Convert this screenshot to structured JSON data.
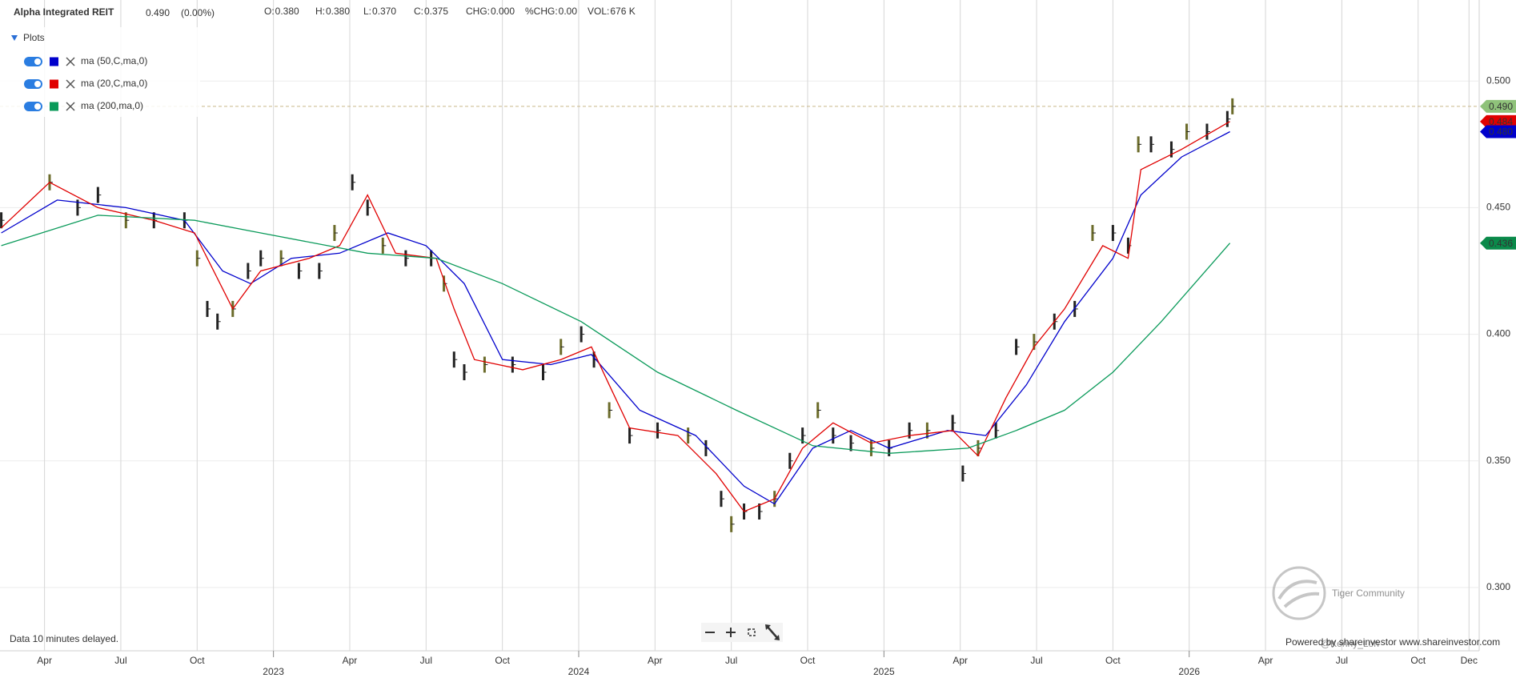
{
  "chart_data": {
    "type": "ohlc-ma",
    "title": "Alpha Integrated REIT",
    "last": "0.490",
    "change": "(0.00%)",
    "quote": [
      {
        "label": "O:",
        "value": "0.380"
      },
      {
        "label": "H:",
        "value": "0.380"
      },
      {
        "label": "L:",
        "value": "0.370"
      },
      {
        "label": "C:",
        "value": "0.375"
      },
      {
        "label": "CHG:",
        "value": "0.000"
      },
      {
        "label": "%CHG:",
        "value": "0.00"
      },
      {
        "label": "VOL:",
        "value": "676 K"
      }
    ],
    "legend_title": "Plots",
    "note": "Data 10 minutes delayed.",
    "credit": "Powered by shareinvestor www.shareinvestor.com",
    "watermark": "Tiger Community",
    "watermark_user": "@Kenny_Loh",
    "xlim": [
      1.25,
      59.4
    ],
    "ylim": [
      0.275,
      0.532
    ],
    "grid": true,
    "yticks": [
      {
        "value": 0.3,
        "label": "0.300"
      },
      {
        "value": 0.35,
        "label": "0.350"
      },
      {
        "value": 0.4,
        "label": "0.400"
      },
      {
        "value": 0.45,
        "label": "0.450"
      },
      {
        "value": 0.5,
        "label": "0.500"
      }
    ],
    "xticks": [
      {
        "value": 3,
        "label": "Apr"
      },
      {
        "value": 6,
        "label": "Jul"
      },
      {
        "value": 9,
        "label": "Oct"
      },
      {
        "value": 15,
        "label": "Apr"
      },
      {
        "value": 18,
        "label": "Jul"
      },
      {
        "value": 21,
        "label": "Oct"
      },
      {
        "value": 27,
        "label": "Apr"
      },
      {
        "value": 30,
        "label": "Jul"
      },
      {
        "value": 33,
        "label": "Oct"
      },
      {
        "value": 39,
        "label": "Apr"
      },
      {
        "value": 42,
        "label": "Jul"
      },
      {
        "value": 45,
        "label": "Oct"
      },
      {
        "value": 51,
        "label": "Apr"
      },
      {
        "value": 54,
        "label": "Jul"
      },
      {
        "value": 57,
        "label": "Oct"
      },
      {
        "value": 59,
        "label": "Dec"
      }
    ],
    "year_ticks": [
      {
        "value": 12,
        "label": "2023"
      },
      {
        "value": 24,
        "label": "2024"
      },
      {
        "value": 36,
        "label": "2025"
      },
      {
        "value": 48,
        "label": "2026"
      }
    ],
    "price": {
      "color": "#222222",
      "x": [
        1.3,
        3.2,
        4.3,
        5.1,
        6.2,
        7.3,
        8.5,
        9.0,
        9.4,
        9.8,
        10.4,
        11.0,
        11.5,
        12.3,
        13.0,
        13.8,
        14.4,
        15.1,
        15.7,
        16.3,
        17.2,
        18.2,
        18.7,
        19.1,
        19.5,
        20.3,
        21.4,
        22.6,
        23.3,
        24.1,
        24.6,
        25.2,
        26.0,
        27.1,
        28.3,
        29.0,
        29.6,
        30.0,
        30.5,
        31.1,
        31.7,
        32.3,
        32.8,
        33.4,
        34.0,
        34.7,
        35.5,
        36.2,
        37.0,
        37.7,
        38.7,
        39.1,
        39.7,
        40.4,
        41.2,
        41.9,
        42.7,
        43.5,
        44.2,
        45.0,
        45.6,
        46.0,
        46.5,
        47.3,
        47.9,
        48.7,
        49.5,
        49.7
      ],
      "values": [
        0.445,
        0.46,
        0.45,
        0.455,
        0.445,
        0.445,
        0.445,
        0.43,
        0.41,
        0.405,
        0.41,
        0.425,
        0.43,
        0.43,
        0.425,
        0.425,
        0.44,
        0.46,
        0.45,
        0.435,
        0.43,
        0.43,
        0.42,
        0.39,
        0.385,
        0.388,
        0.388,
        0.385,
        0.395,
        0.4,
        0.39,
        0.37,
        0.36,
        0.362,
        0.36,
        0.355,
        0.335,
        0.325,
        0.33,
        0.33,
        0.335,
        0.35,
        0.36,
        0.37,
        0.36,
        0.357,
        0.355,
        0.355,
        0.362,
        0.362,
        0.365,
        0.345,
        0.355,
        0.362,
        0.395,
        0.397,
        0.405,
        0.41,
        0.44,
        0.44,
        0.435,
        0.475,
        0.475,
        0.473,
        0.48,
        0.48,
        0.485,
        0.49
      ]
    },
    "series": [
      {
        "name": "ma (50,C,ma,0)",
        "color": "#0000cc",
        "x": [
          1.3,
          3.5,
          6.2,
          8.5,
          10.0,
          11.1,
          12.7,
          14.6,
          16.5,
          18.0,
          19.5,
          21.0,
          22.9,
          24.5,
          26.4,
          28.6,
          30.5,
          31.7,
          33.2,
          34.7,
          36.2,
          38.5,
          40.0,
          41.6,
          43.1,
          45.0,
          46.1,
          47.7,
          49.6
        ],
        "values": [
          0.44,
          0.453,
          0.45,
          0.445,
          0.425,
          0.42,
          0.43,
          0.432,
          0.44,
          0.435,
          0.42,
          0.39,
          0.388,
          0.392,
          0.37,
          0.36,
          0.34,
          0.333,
          0.355,
          0.362,
          0.355,
          0.362,
          0.36,
          0.38,
          0.405,
          0.43,
          0.455,
          0.47,
          0.48
        ]
      },
      {
        "name": "ma (20,C,ma,0)",
        "color": "#e00000",
        "x": [
          1.3,
          3.2,
          5.1,
          7.3,
          8.9,
          10.4,
          11.5,
          13.4,
          14.6,
          15.7,
          16.8,
          18.4,
          19.1,
          19.9,
          21.8,
          23.3,
          24.5,
          25.2,
          26.0,
          27.9,
          29.4,
          30.5,
          31.7,
          32.8,
          34.0,
          35.5,
          37.0,
          38.7,
          39.7,
          40.8,
          41.9,
          43.1,
          44.6,
          45.6,
          46.1,
          47.7,
          49.6
        ],
        "values": [
          0.442,
          0.46,
          0.45,
          0.445,
          0.44,
          0.41,
          0.425,
          0.43,
          0.435,
          0.455,
          0.432,
          0.43,
          0.41,
          0.39,
          0.386,
          0.39,
          0.395,
          0.38,
          0.363,
          0.36,
          0.345,
          0.33,
          0.335,
          0.355,
          0.365,
          0.357,
          0.36,
          0.362,
          0.352,
          0.375,
          0.395,
          0.41,
          0.435,
          0.43,
          0.465,
          0.473,
          0.484
        ]
      },
      {
        "name": "ma (200,ma,0)",
        "color": "#0a9a5a",
        "x": [
          1.3,
          5.1,
          8.9,
          11.5,
          15.7,
          18.4,
          21.0,
          24.1,
          27.1,
          30.2,
          33.2,
          36.2,
          39.3,
          41.2,
          43.1,
          45.0,
          46.9,
          49.6
        ],
        "values": [
          0.435,
          0.447,
          0.445,
          0.44,
          0.432,
          0.43,
          0.42,
          0.405,
          0.385,
          0.37,
          0.356,
          0.353,
          0.355,
          0.362,
          0.37,
          0.385,
          0.405,
          0.436
        ]
      }
    ],
    "price_tags": [
      {
        "value": 0.49,
        "label": "0.490",
        "color": "#8fc27a"
      },
      {
        "value": 0.484,
        "label": "0.484",
        "color": "#e00000"
      },
      {
        "value": 0.48,
        "label": "0.480",
        "color": "#0000cc"
      },
      {
        "value": 0.436,
        "label": "0.436",
        "color": "#0a8a4a"
      }
    ]
  }
}
